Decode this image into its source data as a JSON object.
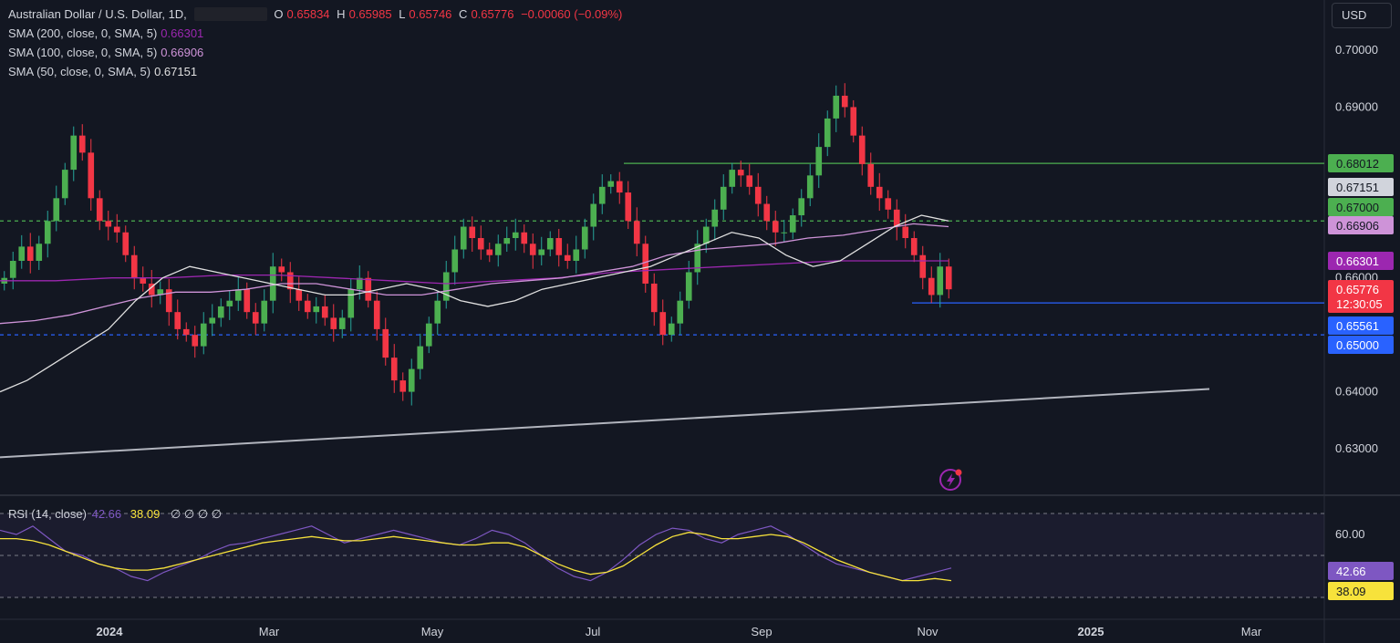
{
  "header": {
    "symbol_title": "Australian Dollar / U.S. Dollar, 1D,",
    "ohlc": [
      {
        "k": "O",
        "v": "0.65834"
      },
      {
        "k": "H",
        "v": "0.65985"
      },
      {
        "k": "L",
        "v": "0.65746"
      },
      {
        "k": "C",
        "v": "0.65776"
      }
    ],
    "change": "−0.00060 (−0.09%)"
  },
  "indicators": [
    {
      "label": "SMA (200, close, 0, SMA, 5)",
      "value": "0.66301",
      "color": "#9c27b0"
    },
    {
      "label": "SMA (100, close, 0, SMA, 5)",
      "value": "0.66906",
      "color": "#ce93d8"
    },
    {
      "label": "SMA (50, close, 0, SMA, 5)",
      "value": "0.67151",
      "color": "#e0e0e0"
    }
  ],
  "currency_button": "USD",
  "rsi": {
    "title": "RSI (14, close)",
    "value": "42.66",
    "ma_value": "38.09",
    "placeholders": "∅ ∅ ∅ ∅",
    "tick_label": "60.00"
  },
  "chart_data": {
    "type": "candlestick",
    "symbol": "AUDUSD",
    "timeframe": "1D",
    "y_range": [
      0.626,
      0.706
    ],
    "y_ticks": [
      "0.70000",
      "0.69000",
      "0.66000",
      "0.64000",
      "0.63000"
    ],
    "x_ticks": [
      "2024",
      "Mar",
      "May",
      "Jul",
      "Sep",
      "Nov",
      "2025",
      "Mar"
    ],
    "price_tags": [
      {
        "value": 0.68012,
        "text": "0.68012",
        "bg": "#4caf50",
        "fg": "#131722"
      },
      {
        "value": 0.67151,
        "text": "0.67151",
        "bg": "#d1d4dc",
        "fg": "#131722"
      },
      {
        "value": 0.67,
        "text": "0.67000",
        "bg": "#4caf50",
        "fg": "#131722"
      },
      {
        "value": 0.66906,
        "text": "0.66906",
        "bg": "#ce93d8",
        "fg": "#131722"
      },
      {
        "value": 0.66301,
        "text": "0.66301",
        "bg": "#9c27b0",
        "fg": "#ffffff"
      },
      {
        "value": 0.65776,
        "text": "0.65776",
        "sub": "12:30:05",
        "bg": "#f23645",
        "fg": "#ffffff"
      },
      {
        "value": 0.65561,
        "text": "0.65561",
        "bg": "#2962ff",
        "fg": "#ffffff"
      },
      {
        "value": 0.65,
        "text": "0.65000",
        "bg": "#2962ff",
        "fg": "#ffffff"
      }
    ],
    "horizontal_levels": [
      {
        "value": 0.68012,
        "style": "solid",
        "color": "#4caf50"
      },
      {
        "value": 0.67,
        "style": "dashed",
        "color": "#4caf50"
      },
      {
        "value": 0.65561,
        "style": "solid",
        "color": "#2962ff"
      },
      {
        "value": 0.65,
        "style": "dashed",
        "color": "#2962ff"
      }
    ],
    "trendline": {
      "from": 0.6285,
      "to": 0.6405,
      "color": "#b2b5be"
    },
    "price_series": [
      0.66,
      0.663,
      0.6655,
      0.663,
      0.666,
      0.67,
      0.674,
      0.679,
      0.685,
      0.682,
      0.674,
      0.67,
      0.669,
      0.668,
      0.664,
      0.66,
      0.659,
      0.657,
      0.658,
      0.654,
      0.651,
      0.65,
      0.648,
      0.652,
      0.653,
      0.655,
      0.656,
      0.658,
      0.654,
      0.652,
      0.656,
      0.662,
      0.661,
      0.658,
      0.656,
      0.654,
      0.655,
      0.653,
      0.651,
      0.653,
      0.658,
      0.66,
      0.656,
      0.651,
      0.646,
      0.642,
      0.64,
      0.644,
      0.648,
      0.652,
      0.656,
      0.661,
      0.665,
      0.669,
      0.667,
      0.665,
      0.664,
      0.666,
      0.667,
      0.668,
      0.666,
      0.664,
      0.665,
      0.667,
      0.664,
      0.663,
      0.665,
      0.669,
      0.673,
      0.676,
      0.677,
      0.675,
      0.67,
      0.666,
      0.659,
      0.654,
      0.65,
      0.652,
      0.656,
      0.661,
      0.666,
      0.669,
      0.672,
      0.676,
      0.679,
      0.678,
      0.676,
      0.673,
      0.67,
      0.668,
      0.668,
      0.671,
      0.674,
      0.678,
      0.683,
      0.688,
      0.692,
      0.69,
      0.685,
      0.68,
      0.676,
      0.674,
      0.672,
      0.669,
      0.667,
      0.664,
      0.66,
      0.657,
      0.662,
      0.658
    ],
    "sma50": [
      0.64,
      0.642,
      0.645,
      0.648,
      0.651,
      0.656,
      0.66,
      0.662,
      0.661,
      0.66,
      0.659,
      0.658,
      0.657,
      0.657,
      0.658,
      0.659,
      0.658,
      0.656,
      0.655,
      0.656,
      0.658,
      0.659,
      0.66,
      0.661,
      0.662,
      0.664,
      0.666,
      0.668,
      0.667,
      0.664,
      0.662,
      0.663,
      0.666,
      0.669,
      0.671,
      0.67
    ],
    "sma100": [
      0.652,
      0.6525,
      0.6535,
      0.655,
      0.6565,
      0.6575,
      0.6575,
      0.658,
      0.659,
      0.659,
      0.658,
      0.657,
      0.657,
      0.658,
      0.659,
      0.6595,
      0.66,
      0.661,
      0.662,
      0.664,
      0.665,
      0.6655,
      0.666,
      0.667,
      0.6675,
      0.6685,
      0.6695,
      0.669
    ],
    "sma200": [
      0.6595,
      0.6595,
      0.66,
      0.66,
      0.6605,
      0.6605,
      0.66,
      0.6595,
      0.659,
      0.6595,
      0.66,
      0.661,
      0.6615,
      0.662,
      0.6625,
      0.663,
      0.663,
      0.663
    ],
    "rsi_series": [
      62,
      60,
      64,
      58,
      52,
      50,
      46,
      44,
      40,
      38,
      42,
      45,
      48,
      52,
      55,
      56,
      58,
      60,
      62,
      64,
      60,
      56,
      58,
      60,
      62,
      60,
      58,
      56,
      55,
      58,
      62,
      60,
      56,
      50,
      44,
      40,
      38,
      42,
      48,
      55,
      60,
      63,
      62,
      58,
      56,
      60,
      62,
      64,
      60,
      55,
      50,
      46,
      44,
      42,
      40,
      38,
      40,
      42,
      44
    ],
    "rsi_ma_series": [
      58,
      58,
      57,
      55,
      52,
      49,
      46,
      44,
      43,
      43,
      44,
      46,
      48,
      50,
      52,
      54,
      56,
      57,
      58,
      59,
      58,
      57,
      57,
      58,
      59,
      58,
      57,
      56,
      55,
      55,
      56,
      56,
      54,
      50,
      46,
      43,
      41,
      42,
      45,
      50,
      55,
      59,
      61,
      60,
      58,
      58,
      59,
      60,
      59,
      56,
      52,
      48,
      45,
      42,
      40,
      38,
      38,
      39,
      38
    ]
  }
}
